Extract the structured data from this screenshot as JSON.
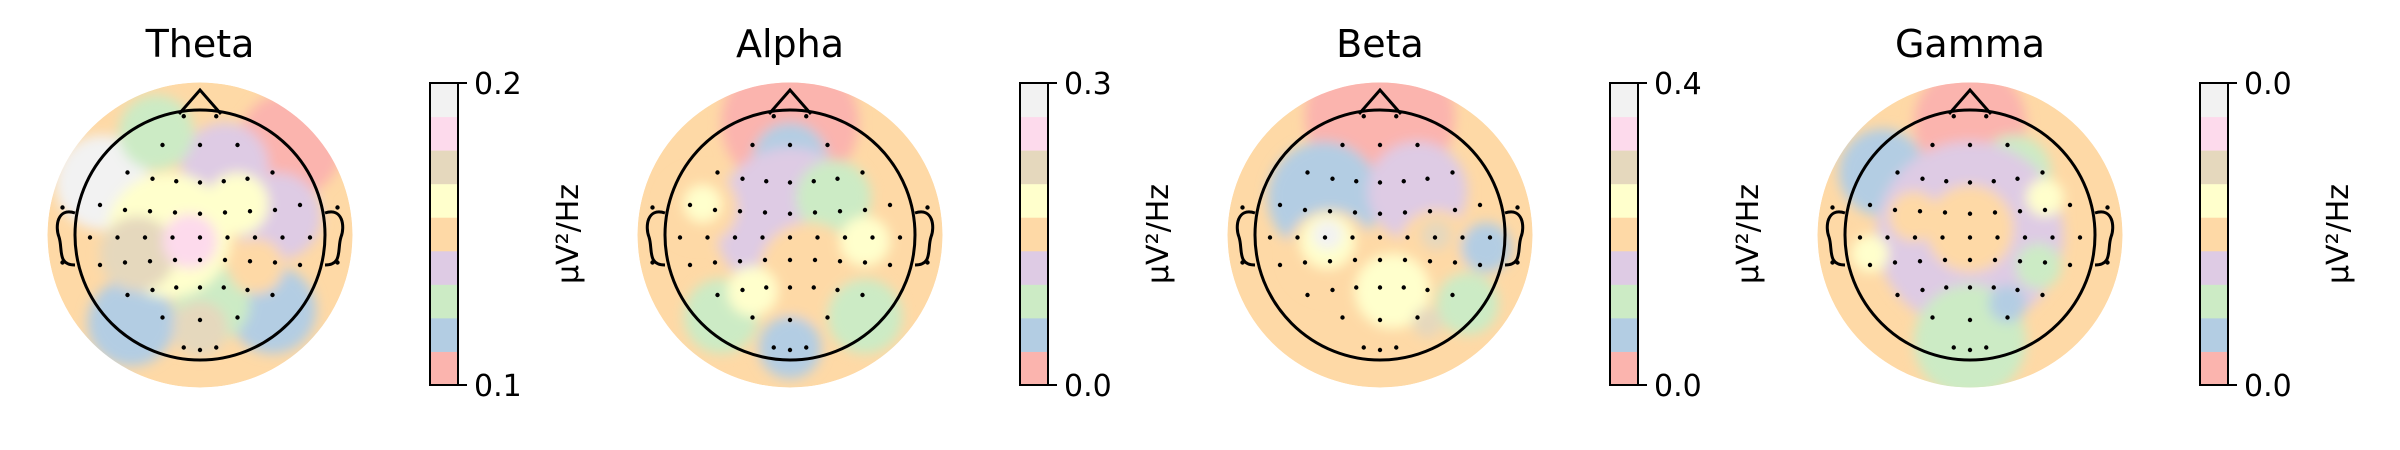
{
  "palette": [
    "#fbb4ae",
    "#b3cde3",
    "#ccebc5",
    "#decbe4",
    "#fed9a6",
    "#ffffcc",
    "#e5d8bd",
    "#fddaec",
    "#f2f2f2"
  ],
  "outline_color": "#000000",
  "chart_data": [
    {
      "type": "heatmap",
      "title": "Theta",
      "colorbar": {
        "label": "µV²/Hz",
        "ticks": [
          "0.1",
          "0.2"
        ],
        "vmin": 0.1,
        "vmax": 0.2,
        "levels": 9
      },
      "regions": [
        {
          "level": 8,
          "x": -0.78,
          "y": 0.42,
          "r": 0.38
        },
        {
          "level": 0,
          "x": 0.72,
          "y": 0.72,
          "r": 0.42
        },
        {
          "level": 3,
          "x": 0.2,
          "y": 0.55,
          "r": 0.35
        },
        {
          "level": 3,
          "x": 0.62,
          "y": 0.15,
          "r": 0.35
        },
        {
          "level": 2,
          "x": -0.35,
          "y": 0.82,
          "r": 0.3
        },
        {
          "level": 1,
          "x": 0.58,
          "y": -0.6,
          "r": 0.35
        },
        {
          "level": 1,
          "x": -0.55,
          "y": -0.7,
          "r": 0.35
        },
        {
          "level": 2,
          "x": 0.1,
          "y": -0.55,
          "r": 0.3
        },
        {
          "level": 5,
          "x": -0.25,
          "y": 0.0,
          "r": 0.5
        },
        {
          "level": 6,
          "x": -0.5,
          "y": -0.15,
          "r": 0.3
        },
        {
          "level": 6,
          "x": 0.0,
          "y": -0.75,
          "r": 0.22
        },
        {
          "level": 7,
          "x": -0.08,
          "y": -0.05,
          "r": 0.22
        },
        {
          "level": 4,
          "x": 0.45,
          "y": -0.25,
          "r": 0.22
        },
        {
          "level": 5,
          "x": 0.3,
          "y": 0.25,
          "r": 0.25
        }
      ]
    },
    {
      "type": "heatmap",
      "title": "Alpha",
      "colorbar": {
        "label": "µV²/Hz",
        "ticks": [
          "0.0",
          "0.3"
        ],
        "vmin": 0.0,
        "vmax": 0.3,
        "levels": 9
      },
      "regions": [
        {
          "level": 0,
          "x": 0.0,
          "y": 0.9,
          "r": 0.55
        },
        {
          "level": 1,
          "x": 0.0,
          "y": 0.6,
          "r": 0.3
        },
        {
          "level": 3,
          "x": 0.0,
          "y": 0.1,
          "r": 0.6
        },
        {
          "level": 4,
          "x": -0.72,
          "y": 0.22,
          "r": 0.3
        },
        {
          "level": 5,
          "x": -0.7,
          "y": 0.25,
          "r": 0.15
        },
        {
          "level": 2,
          "x": 0.35,
          "y": 0.3,
          "r": 0.3
        },
        {
          "level": 4,
          "x": 0.15,
          "y": -0.3,
          "r": 0.4
        },
        {
          "level": 5,
          "x": 0.6,
          "y": -0.05,
          "r": 0.2
        },
        {
          "level": 1,
          "x": 0.0,
          "y": -0.9,
          "r": 0.25
        },
        {
          "level": 2,
          "x": -0.55,
          "y": -0.65,
          "r": 0.3
        },
        {
          "level": 2,
          "x": 0.6,
          "y": -0.65,
          "r": 0.3
        },
        {
          "level": 5,
          "x": -0.3,
          "y": -0.45,
          "r": 0.2
        }
      ]
    },
    {
      "type": "heatmap",
      "title": "Beta",
      "colorbar": {
        "label": "µV²/Hz",
        "ticks": [
          "0.0",
          "0.4"
        ],
        "vmin": 0.0,
        "vmax": 0.4,
        "levels": 9
      },
      "regions": [
        {
          "level": 0,
          "x": 0.0,
          "y": 0.95,
          "r": 0.6
        },
        {
          "level": 1,
          "x": -0.45,
          "y": 0.3,
          "r": 0.45
        },
        {
          "level": 3,
          "x": 0.3,
          "y": 0.35,
          "r": 0.4
        },
        {
          "level": 4,
          "x": -0.4,
          "y": -0.15,
          "r": 0.35
        },
        {
          "level": 5,
          "x": -0.42,
          "y": -0.05,
          "r": 0.22
        },
        {
          "level": 8,
          "x": -0.42,
          "y": 0.0,
          "r": 0.12
        },
        {
          "level": 4,
          "x": 0.45,
          "y": -0.1,
          "r": 0.3
        },
        {
          "level": 6,
          "x": 0.45,
          "y": 0.0,
          "r": 0.12
        },
        {
          "level": 5,
          "x": 0.1,
          "y": -0.45,
          "r": 0.3
        },
        {
          "level": 2,
          "x": 0.7,
          "y": -0.55,
          "r": 0.25
        },
        {
          "level": 1,
          "x": 0.85,
          "y": -0.1,
          "r": 0.2
        },
        {
          "level": 6,
          "x": 0.38,
          "y": -0.7,
          "r": 0.12
        }
      ]
    },
    {
      "type": "heatmap",
      "title": "Gamma",
      "colorbar": {
        "label": "µV²/Hz",
        "ticks": [
          "0.0",
          "0.0"
        ],
        "vmin": 0.0,
        "vmax": 0.0,
        "levels": 9
      },
      "regions": [
        {
          "level": 0,
          "x": 0.0,
          "y": 0.9,
          "r": 0.45
        },
        {
          "level": 1,
          "x": -0.7,
          "y": 0.5,
          "r": 0.35
        },
        {
          "level": 2,
          "x": 0.35,
          "y": 0.5,
          "r": 0.3
        },
        {
          "level": 3,
          "x": 0.0,
          "y": 0.0,
          "r": 0.75
        },
        {
          "level": 4,
          "x": 0.0,
          "y": 0.05,
          "r": 0.35
        },
        {
          "level": 4,
          "x": -0.45,
          "y": 0.15,
          "r": 0.2
        },
        {
          "level": 2,
          "x": 0.0,
          "y": -0.85,
          "r": 0.45
        },
        {
          "level": 1,
          "x": 0.3,
          "y": -0.55,
          "r": 0.15
        },
        {
          "level": 5,
          "x": 0.6,
          "y": 0.3,
          "r": 0.15
        },
        {
          "level": 5,
          "x": -0.8,
          "y": -0.15,
          "r": 0.15
        },
        {
          "level": 2,
          "x": 0.55,
          "y": -0.25,
          "r": 0.18
        }
      ]
    }
  ]
}
